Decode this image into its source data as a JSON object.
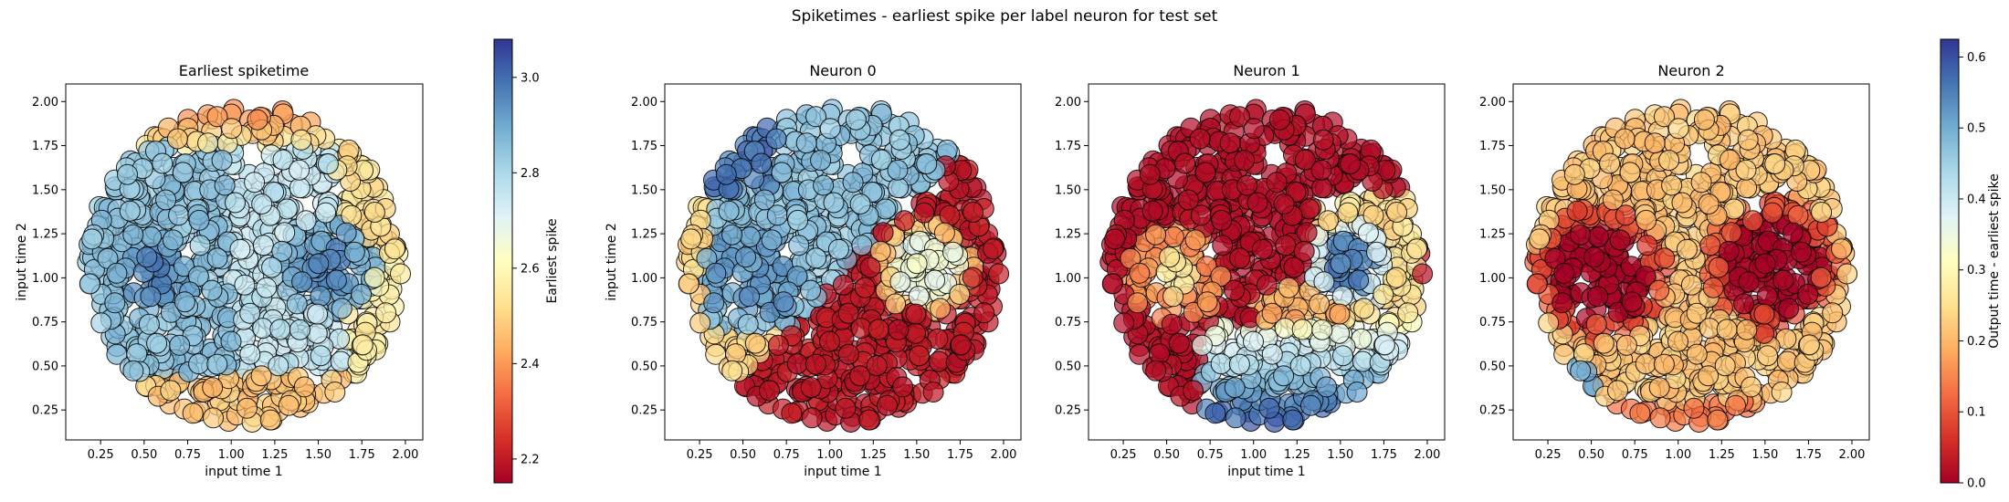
{
  "figure": {
    "title": "Spiketimes - earliest spike per label neuron for test set"
  },
  "colors": {
    "colormap": [
      "#a50026",
      "#d73027",
      "#f46d43",
      "#fdae61",
      "#fee090",
      "#ffffbf",
      "#e0f3f8",
      "#abd9e9",
      "#74add1",
      "#4575b4",
      "#313695"
    ],
    "marker_edge": "#000000",
    "marker_alpha": 0.7
  },
  "chart_data": [
    {
      "type": "scatter",
      "title": "Earliest spiketime",
      "xlabel": "input time 1",
      "ylabel": "input time 2",
      "xlim": [
        0.05,
        2.1
      ],
      "ylim": [
        0.08,
        2.1
      ],
      "xticks": [
        "0.25",
        "0.50",
        "0.75",
        "1.00",
        "1.25",
        "1.50",
        "1.75",
        "2.00"
      ],
      "yticks": [
        "0.25",
        "0.50",
        "0.75",
        "1.00",
        "1.25",
        "1.50",
        "1.75",
        "2.00"
      ],
      "color_by": "Earliest spike",
      "pattern": "earliest",
      "point_count": 900,
      "colorbar": {
        "label": "Earliest spike",
        "range": [
          2.15,
          3.08
        ],
        "ticks": [
          "2.2",
          "2.4",
          "2.6",
          "2.8",
          "3.0"
        ]
      }
    },
    {
      "type": "scatter",
      "title": "Neuron 0",
      "xlabel": "input time 1",
      "ylabel": "input time 2",
      "xlim": [
        0.05,
        2.1
      ],
      "ylim": [
        0.08,
        2.1
      ],
      "xticks": [
        "0.25",
        "0.50",
        "0.75",
        "1.00",
        "1.25",
        "1.50",
        "1.75",
        "2.00"
      ],
      "yticks": [
        "0.25",
        "0.50",
        "0.75",
        "1.00",
        "1.25",
        "1.50",
        "1.75",
        "2.00"
      ],
      "color_by": "Output time - earliest spike",
      "pattern": "neuron0",
      "point_count": 900
    },
    {
      "type": "scatter",
      "title": "Neuron 1",
      "xlabel": "input time 1",
      "ylabel": "",
      "xlim": [
        0.05,
        2.1
      ],
      "ylim": [
        0.08,
        2.1
      ],
      "xticks": [
        "0.25",
        "0.50",
        "0.75",
        "1.00",
        "1.25",
        "1.50",
        "1.75",
        "2.00"
      ],
      "yticks": [
        "0.25",
        "0.50",
        "0.75",
        "1.00",
        "1.25",
        "1.50",
        "1.75",
        "2.00"
      ],
      "color_by": "Output time - earliest spike",
      "pattern": "neuron1",
      "point_count": 900
    },
    {
      "type": "scatter",
      "title": "Neuron 2",
      "xlabel": "",
      "ylabel": "",
      "xlim": [
        0.05,
        2.1
      ],
      "ylim": [
        0.08,
        2.1
      ],
      "xticks": [
        "0.25",
        "0.50",
        "0.75",
        "1.00",
        "1.25",
        "1.50",
        "1.75",
        "2.00"
      ],
      "yticks": [
        "0.25",
        "0.50",
        "0.75",
        "1.00",
        "1.25",
        "1.50",
        "1.75",
        "2.00"
      ],
      "color_by": "Output time - earliest spike",
      "pattern": "neuron2",
      "point_count": 900,
      "colorbar": {
        "label": "Output time - earliest spike",
        "range": [
          0.0,
          0.625
        ],
        "ticks": [
          "0.0",
          "0.1",
          "0.2",
          "0.3",
          "0.4",
          "0.5",
          "0.6"
        ]
      }
    }
  ],
  "data_model": {
    "domain": "disk of radius 0.9 centered at (1.075, 1.075)",
    "blob_centers": [
      [
        0.55,
        1.03
      ],
      [
        1.55,
        1.07
      ]
    ],
    "blob_radius": 0.28
  }
}
